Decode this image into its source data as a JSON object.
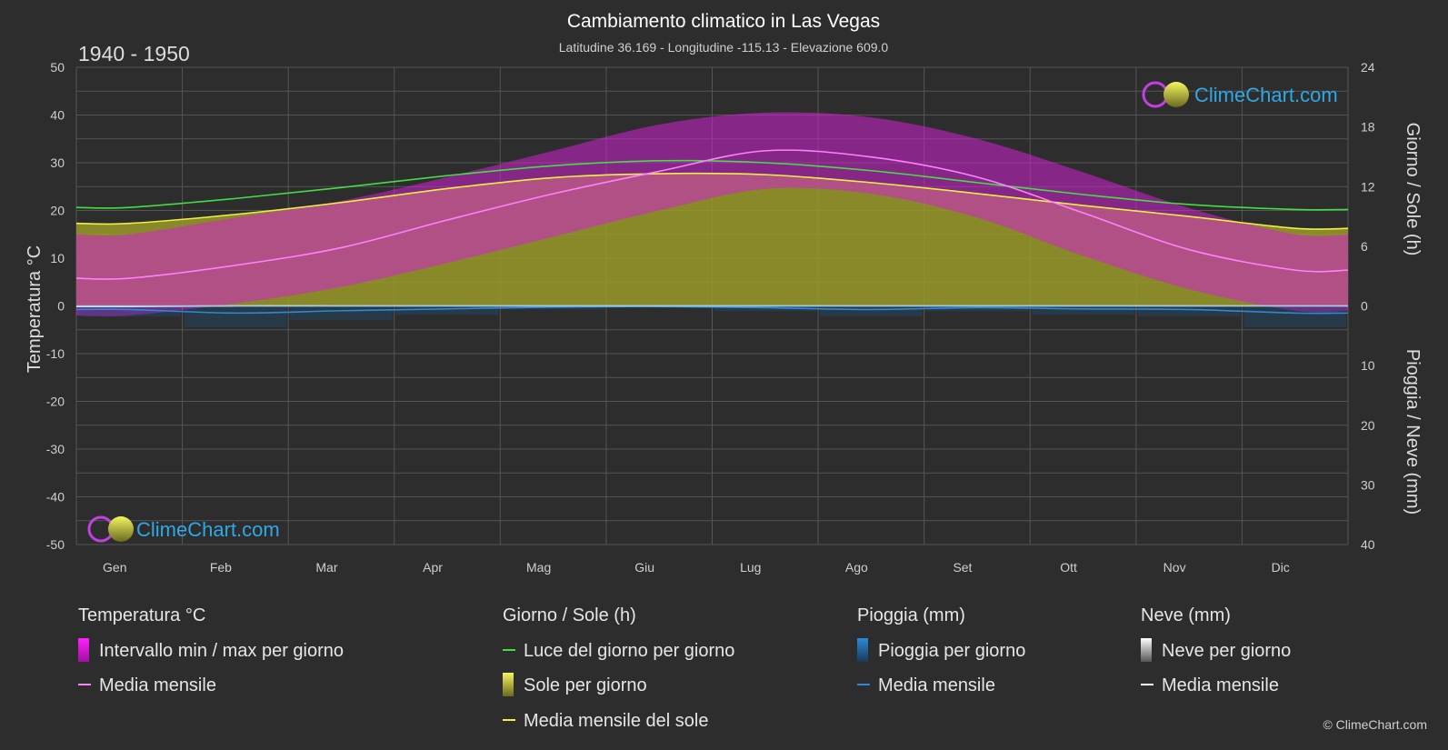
{
  "header": {
    "title": "Cambiamento climatico in Las Vegas",
    "subtitle": "Latitudine 36.169 - Longitudine -115.13 - Elevazione 609.0",
    "period": "1940 - 1950"
  },
  "brand": {
    "text": "ClimeChart.com",
    "copyright": "© ClimeChart.com"
  },
  "colors": {
    "background": "#2d2d2d",
    "temp_range": "#d020d0",
    "temp_mean": "#ff80ff",
    "daylight": "#44dd44",
    "sunshine_fill": "#a8a830",
    "sunshine_mean": "#f0f040",
    "rain": "#2a8ad8",
    "rain_mean": "#2a8ad8",
    "snow": "#bbbbbb",
    "snow_mean": "#ffffff"
  },
  "chart_data": {
    "type": "line",
    "title": "Cambiamento climatico in Las Vegas",
    "x_categories": [
      "Gen",
      "Feb",
      "Mar",
      "Apr",
      "Mag",
      "Giu",
      "Lug",
      "Ago",
      "Set",
      "Ott",
      "Nov",
      "Dic"
    ],
    "y_left": {
      "label": "Temperatura °C",
      "range": [
        -50,
        50
      ],
      "ticks": [
        50,
        40,
        30,
        20,
        10,
        0,
        -10,
        -20,
        -30,
        -40,
        -50
      ]
    },
    "y_right_top": {
      "label": "Giorno / Sole (h)",
      "range": [
        0,
        24
      ],
      "ticks": [
        24,
        18,
        12,
        6,
        0
      ]
    },
    "y_right_bottom": {
      "label": "Pioggia / Neve (mm)",
      "range": [
        0,
        40
      ],
      "ticks": [
        10,
        20,
        30,
        40
      ]
    },
    "grid": true,
    "series": [
      {
        "name": "Media mensile",
        "group": "Temperatura °C",
        "unit": "°C",
        "values": [
          5.8,
          8.5,
          12.2,
          18.0,
          23.5,
          28.2,
          32.5,
          31.2,
          27.0,
          19.5,
          11.8,
          7.5
        ]
      },
      {
        "name": "Intervallo min / max per giorno",
        "group": "Temperatura °C",
        "unit": "°C",
        "min": [
          -2.0,
          0.5,
          4.0,
          9.0,
          14.5,
          20.0,
          24.5,
          23.5,
          18.5,
          10.5,
          3.5,
          -1.0
        ],
        "max": [
          15.0,
          18.5,
          22.0,
          27.0,
          32.5,
          38.0,
          40.5,
          39.5,
          35.0,
          28.0,
          20.5,
          15.0
        ]
      },
      {
        "name": "Luce del giorno per giorno",
        "group": "Giorno / Sole (h)",
        "unit": "h",
        "values": [
          9.9,
          10.8,
          11.9,
          13.1,
          14.1,
          14.6,
          14.4,
          13.6,
          12.4,
          11.2,
          10.2,
          9.7
        ]
      },
      {
        "name": "Media mensile del sole",
        "group": "Giorno / Sole (h)",
        "unit": "h",
        "values": [
          8.3,
          9.2,
          10.4,
          11.8,
          12.9,
          13.3,
          13.2,
          12.4,
          11.3,
          10.1,
          9.0,
          7.8
        ]
      },
      {
        "name": "Sole per giorno",
        "group": "Giorno / Sole (h)",
        "unit": "h",
        "values": [
          8.3,
          9.2,
          10.4,
          11.8,
          12.9,
          13.3,
          13.2,
          12.4,
          11.3,
          10.1,
          9.0,
          7.8
        ]
      },
      {
        "name": "Media mensile",
        "group": "Pioggia (mm)",
        "unit": "mm",
        "values": [
          0.6,
          1.2,
          0.8,
          0.5,
          0.2,
          0.1,
          0.3,
          0.6,
          0.3,
          0.5,
          0.6,
          1.2
        ]
      },
      {
        "name": "Media mensile",
        "group": "Neve (mm)",
        "unit": "mm",
        "values": [
          0.1,
          0.0,
          0.0,
          0.0,
          0.0,
          0.0,
          0.0,
          0.0,
          0.0,
          0.0,
          0.0,
          0.0
        ]
      }
    ]
  },
  "legend": {
    "groups": [
      {
        "title": "Temperatura °C",
        "items": [
          "Intervallo min / max per giorno",
          "Media mensile"
        ]
      },
      {
        "title": "Giorno / Sole (h)",
        "items": [
          "Luce del giorno per giorno",
          "Sole per giorno",
          "Media mensile del sole"
        ]
      },
      {
        "title": "Pioggia (mm)",
        "items": [
          "Pioggia per giorno",
          "Media mensile"
        ]
      },
      {
        "title": "Neve (mm)",
        "items": [
          "Neve per giorno",
          "Media mensile"
        ]
      }
    ]
  }
}
